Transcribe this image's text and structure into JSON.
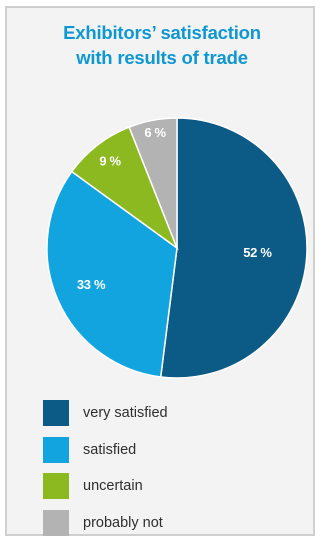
{
  "chart_data": {
    "type": "pie",
    "title": "Exhibitors’ satisfaction with results of trade",
    "title_lines": [
      "Exhibitors’ satisfaction",
      "with results of trade"
    ],
    "labels": [
      "very satisfied",
      "satisfied",
      "uncertain",
      "probably not"
    ],
    "values": [
      52,
      33,
      9,
      6
    ],
    "value_labels": [
      "52 %",
      "33 %",
      "9 %",
      "6 %"
    ],
    "colors": [
      "#0c5a86",
      "#12a4df",
      "#8cb820",
      "#b3b3b3"
    ],
    "start_angle": "12 o'clock",
    "direction": "clockwise",
    "legend_position": "bottom"
  }
}
